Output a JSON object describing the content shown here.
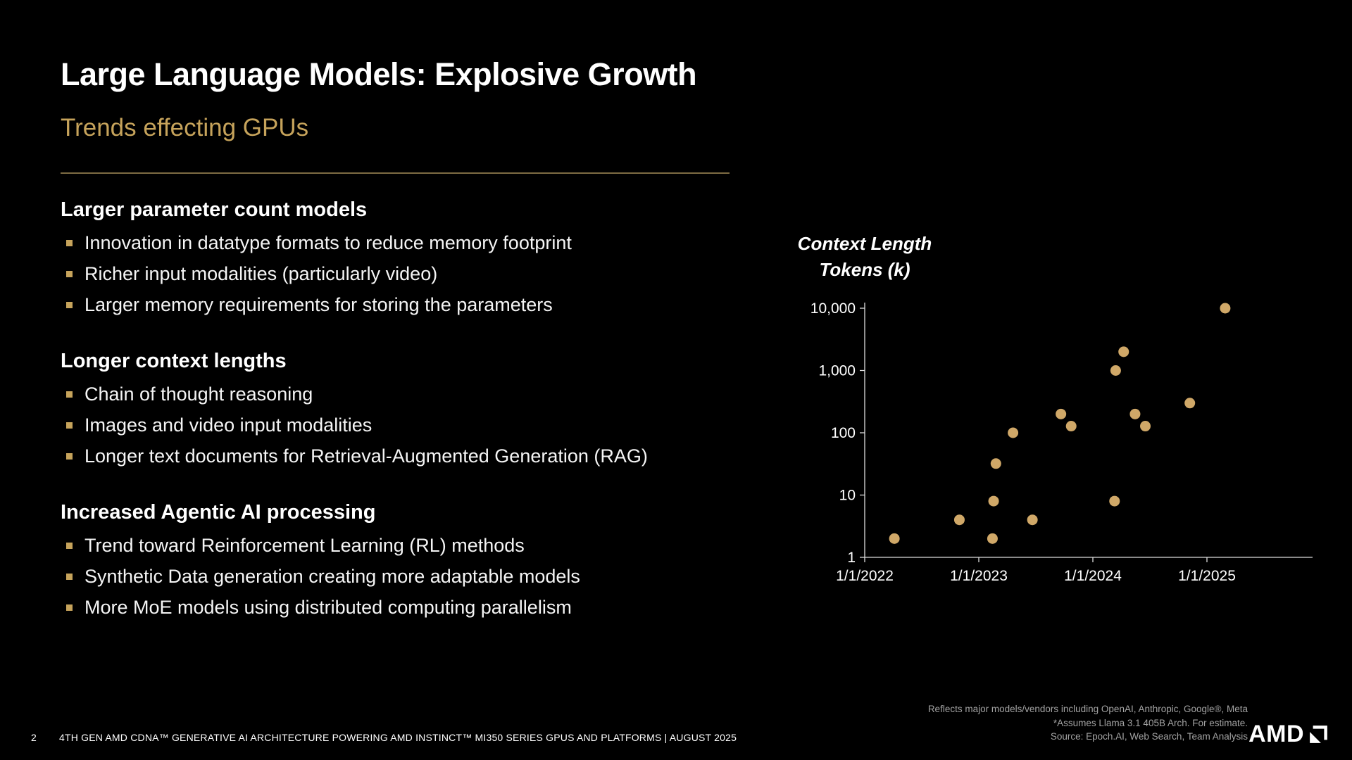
{
  "slide": {
    "title": "Large Language Models: Explosive Growth",
    "subtitle": "Trends effecting GPUs",
    "sections": [
      {
        "heading": "Larger parameter count models",
        "bullets": [
          "Innovation in datatype formats to reduce memory footprint",
          "Richer input modalities (particularly video)",
          "Larger memory requirements for storing the parameters"
        ]
      },
      {
        "heading": "Longer context lengths",
        "bullets": [
          "Chain of thought reasoning",
          "Images and video input modalities",
          "Longer text documents for Retrieval-Augmented Generation (RAG)"
        ]
      },
      {
        "heading": "Increased Agentic AI processing",
        "bullets": [
          "Trend toward Reinforcement Learning (RL)  methods",
          "Synthetic Data generation creating more adaptable models",
          "More MoE models using distributed computing parallelism"
        ]
      }
    ]
  },
  "chart": {
    "title_line1": "Context Length",
    "title_line2": "Tokens (k)"
  },
  "chart_data": {
    "type": "scatter",
    "title": "Context Length Tokens (k)",
    "y_scale": "log",
    "y_ticks": [
      "1",
      "10",
      "100",
      "1,000",
      "10,000"
    ],
    "y_tick_values": [
      1,
      10,
      100,
      1000,
      10000
    ],
    "x_ticks": [
      "1/1/2022",
      "1/1/2023",
      "1/1/2024",
      "1/1/2025"
    ],
    "x_tick_values": [
      2022,
      2023,
      2024,
      2025
    ],
    "x_range": [
      2022,
      2025.9
    ],
    "ylim": [
      1,
      10000
    ],
    "grid": false,
    "legend": false,
    "point_color": "#D0A868",
    "points": [
      {
        "x": 2022.26,
        "y": 2
      },
      {
        "x": 2022.83,
        "y": 4
      },
      {
        "x": 2023.12,
        "y": 2
      },
      {
        "x": 2023.13,
        "y": 8
      },
      {
        "x": 2023.15,
        "y": 32
      },
      {
        "x": 2023.3,
        "y": 100
      },
      {
        "x": 2023.47,
        "y": 4
      },
      {
        "x": 2023.72,
        "y": 200
      },
      {
        "x": 2023.81,
        "y": 128
      },
      {
        "x": 2024.19,
        "y": 8
      },
      {
        "x": 2024.2,
        "y": 1000
      },
      {
        "x": 2024.27,
        "y": 2000
      },
      {
        "x": 2024.37,
        "y": 200
      },
      {
        "x": 2024.46,
        "y": 128
      },
      {
        "x": 2024.85,
        "y": 300
      },
      {
        "x": 2025.16,
        "y": 10000
      }
    ]
  },
  "footnote": {
    "line1": "Reflects major models/vendors including OpenAI, Anthropic, Google®, Meta",
    "line2": "*Assumes Llama 3.1 405B Arch. For estimate.",
    "line3": "Source: Epoch.AI, Web Search, Team Analysis"
  },
  "footer": {
    "page_number": "2",
    "text": "4TH GEN AMD CDNA™ GENERATIVE AI ARCHITECTURE POWERING AMD INSTINCT™ MI350 SERIES GPUS AND PLATFORMS  |  AUGUST 2025"
  },
  "logo": {
    "text": "AMD"
  },
  "colors": {
    "background": "#000000",
    "accent_gold": "#C6A35B",
    "dot_gold": "#D0A868",
    "footnote_gray": "#A3A3A3"
  }
}
